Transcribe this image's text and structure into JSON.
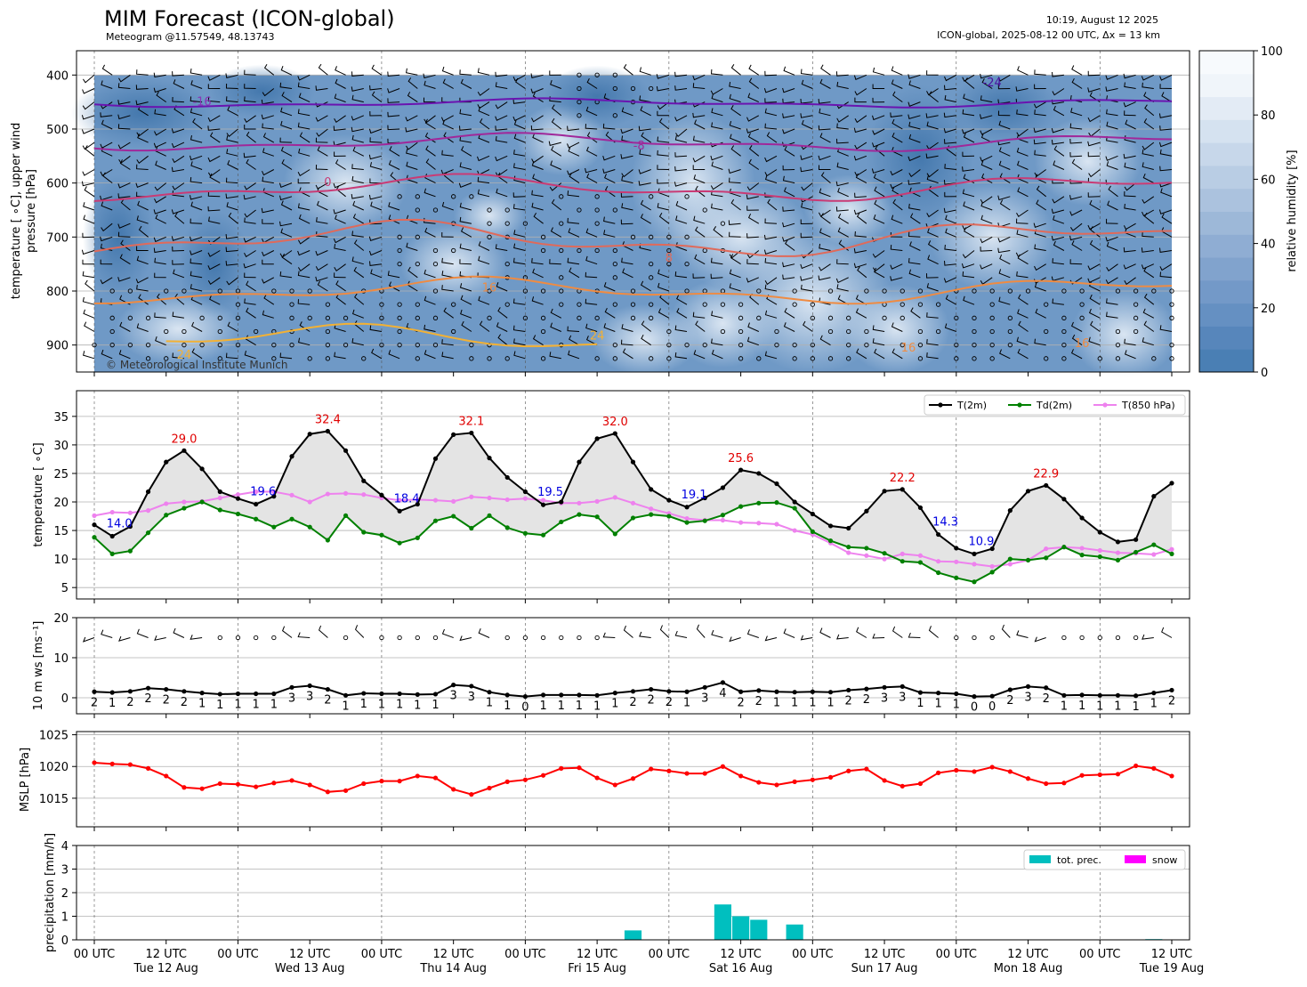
{
  "header": {
    "title": "MIM Forecast (ICON-global)",
    "subtitle": "Meteogram @11.57549, 48.13743",
    "timestamp": "10:19, August 12 2025",
    "run": "ICON-global, 2025-08-12 00 UTC, Δx = 13 km",
    "copyright": "© Meteorological Institute Munich"
  },
  "time_axis": {
    "hours": [
      0,
      3,
      6,
      9,
      12,
      15,
      18,
      21,
      24,
      27,
      30,
      33,
      36,
      39,
      42,
      45,
      48,
      51,
      54,
      57,
      60,
      63,
      66,
      69,
      72,
      75,
      78,
      81,
      84,
      87,
      90,
      93,
      96,
      99,
      102,
      105,
      108,
      111,
      114,
      117,
      120,
      123,
      126,
      129,
      132,
      135,
      138,
      141,
      144,
      147,
      150,
      153,
      156,
      159,
      162,
      165,
      168,
      171,
      174,
      177,
      180
    ],
    "tick_labels": [
      {
        "hour": 0,
        "line1": "00 UTC",
        "line2": ""
      },
      {
        "hour": 12,
        "line1": "12 UTC",
        "line2": "Tue 12 Aug"
      },
      {
        "hour": 24,
        "line1": "00 UTC",
        "line2": ""
      },
      {
        "hour": 36,
        "line1": "12 UTC",
        "line2": "Wed 13 Aug"
      },
      {
        "hour": 48,
        "line1": "00 UTC",
        "line2": ""
      },
      {
        "hour": 60,
        "line1": "12 UTC",
        "line2": "Thu 14 Aug"
      },
      {
        "hour": 72,
        "line1": "00 UTC",
        "line2": ""
      },
      {
        "hour": 84,
        "line1": "12 UTC",
        "line2": "Fri 15 Aug"
      },
      {
        "hour": 96,
        "line1": "00 UTC",
        "line2": ""
      },
      {
        "hour": 108,
        "line1": "12 UTC",
        "line2": "Sat 16 Aug"
      },
      {
        "hour": 120,
        "line1": "00 UTC",
        "line2": ""
      },
      {
        "hour": 132,
        "line1": "12 UTC",
        "line2": "Sun 17 Aug"
      },
      {
        "hour": 144,
        "line1": "00 UTC",
        "line2": ""
      },
      {
        "hour": 156,
        "line1": "12 UTC",
        "line2": "Mon 18 Aug"
      },
      {
        "hour": 168,
        "line1": "00 UTC",
        "line2": ""
      },
      {
        "hour": 180,
        "line1": "12 UTC",
        "line2": "Tue 19 Aug"
      }
    ]
  },
  "chart_data": [
    {
      "type": "heatmap",
      "name": "upper-air",
      "ylabel": "temperature [$^\\circ$C], upper wind\npressure [hPa]",
      "ylabel_lines": [
        "temperature [ ∘C], upper wind",
        "pressure [hPa]"
      ],
      "yticks": [
        400,
        500,
        600,
        700,
        800,
        900
      ],
      "ylim": [
        950,
        355
      ],
      "colorbar": {
        "label": "relative humidity [%]",
        "ticks": [
          0,
          20,
          40,
          60,
          80,
          100
        ],
        "range": [
          0,
          100
        ]
      },
      "isotherm_labels": [
        {
          "hour": 18,
          "p": 448,
          "text": "-16",
          "color": "#8a35b7"
        },
        {
          "hour": 150,
          "p": 413,
          "text": "-24",
          "color": "#4a0fa0"
        },
        {
          "hour": 91,
          "p": 530,
          "text": "-8",
          "color": "#a0289a"
        },
        {
          "hour": 39,
          "p": 597,
          "text": "0",
          "color": "#c93b75"
        },
        {
          "hour": 96,
          "p": 737,
          "text": "8",
          "color": "#e06a5a"
        },
        {
          "hour": 66,
          "p": 793,
          "text": "16",
          "color": "#ef8b42"
        },
        {
          "hour": 84,
          "p": 882,
          "text": "24",
          "color": "#f2b135"
        },
        {
          "hour": 15,
          "p": 917,
          "text": "24",
          "color": "#f2b135"
        },
        {
          "hour": 136,
          "p": 904,
          "text": "16",
          "color": "#ef8b42"
        },
        {
          "hour": 165,
          "p": 896,
          "text": "16",
          "color": "#ef8b42"
        }
      ]
    },
    {
      "type": "line",
      "name": "temperature",
      "ylabel": "temperature [ ∘C]",
      "ylim": [
        3,
        39.5
      ],
      "yticks": [
        5,
        10,
        15,
        20,
        25,
        30,
        35
      ],
      "legend_position": "top-right",
      "series": [
        {
          "name": "T(2m)",
          "color": "#000000",
          "values": [
            16.0,
            14.0,
            15.7,
            21.8,
            27.0,
            29.0,
            25.8,
            21.8,
            20.6,
            19.6,
            21.0,
            28.0,
            31.9,
            32.4,
            29.0,
            23.7,
            21.2,
            18.4,
            19.6,
            27.6,
            31.8,
            32.1,
            27.7,
            24.3,
            21.8,
            19.5,
            20.0,
            27.0,
            31.1,
            32.0,
            27.0,
            22.2,
            20.3,
            19.1,
            20.7,
            22.5,
            25.6,
            25.0,
            23.2,
            20.0,
            17.9,
            15.8,
            15.4,
            18.4,
            21.9,
            22.2,
            19.0,
            14.3,
            11.9,
            10.9,
            11.8,
            18.5,
            21.9,
            22.9,
            20.5,
            17.2,
            14.7,
            13.0,
            13.4,
            21.0,
            23.3
          ]
        },
        {
          "name": "Td(2m)",
          "color": "#008000",
          "values": [
            13.8,
            10.9,
            11.4,
            14.6,
            17.7,
            18.9,
            20.0,
            18.6,
            17.9,
            17.0,
            15.6,
            17.0,
            15.6,
            13.3,
            17.6,
            14.7,
            14.2,
            12.8,
            13.7,
            16.7,
            17.5,
            15.4,
            17.6,
            15.5,
            14.5,
            14.2,
            16.5,
            17.8,
            17.4,
            14.4,
            17.2,
            17.8,
            17.5,
            16.4,
            16.7,
            17.7,
            19.2,
            19.8,
            19.9,
            18.9,
            14.8,
            13.2,
            12.1,
            11.9,
            11.0,
            9.6,
            9.4,
            7.6,
            6.7,
            6.0,
            7.7,
            10.0,
            9.8,
            10.2,
            12.1,
            10.7,
            10.4,
            9.8,
            11.2,
            12.5,
            10.9
          ]
        },
        {
          "name": "T(850 hPa)",
          "color": "#ee82ee",
          "values": [
            17.6,
            18.2,
            18.1,
            18.5,
            19.7,
            20.0,
            20.1,
            20.7,
            21.3,
            21.8,
            21.8,
            21.2,
            20.0,
            21.4,
            21.5,
            21.3,
            20.7,
            20.3,
            20.4,
            20.3,
            20.1,
            20.9,
            20.7,
            20.4,
            20.6,
            20.3,
            19.8,
            19.8,
            20.1,
            20.8,
            19.8,
            18.8,
            18.0,
            17.1,
            16.8,
            16.8,
            16.4,
            16.3,
            16.1,
            15.0,
            14.3,
            12.8,
            11.1,
            10.6,
            10.0,
            10.9,
            10.6,
            9.6,
            9.5,
            9.1,
            8.7,
            9.1,
            9.8,
            11.8,
            12.1,
            11.9,
            11.5,
            11.1,
            11.0,
            10.8,
            11.7
          ]
        }
      ],
      "annotations": [
        {
          "hour": 3,
          "value": 14.0,
          "text": "14.0",
          "color": "blue"
        },
        {
          "hour": 15,
          "value": 29.0,
          "text": "29.0",
          "color": "red"
        },
        {
          "hour": 27,
          "value": 19.6,
          "text": "19.6",
          "color": "blue"
        },
        {
          "hour": 39,
          "value": 32.4,
          "text": "32.4",
          "color": "red"
        },
        {
          "hour": 51,
          "value": 18.4,
          "text": "18.4",
          "color": "blue"
        },
        {
          "hour": 63,
          "value": 32.1,
          "text": "32.1",
          "color": "red"
        },
        {
          "hour": 75,
          "value": 19.5,
          "text": "19.5",
          "color": "blue"
        },
        {
          "hour": 87,
          "value": 32.0,
          "text": "32.0",
          "color": "red"
        },
        {
          "hour": 99,
          "value": 19.1,
          "text": "19.1",
          "color": "blue"
        },
        {
          "hour": 108,
          "value": 25.6,
          "text": "25.6",
          "color": "red"
        },
        {
          "hour": 135,
          "value": 22.2,
          "text": "22.2",
          "color": "red"
        },
        {
          "hour": 141,
          "value": 14.3,
          "text": "14.3",
          "color": "blue"
        },
        {
          "hour": 147,
          "value": 10.9,
          "text": "10.9",
          "color": "blue"
        },
        {
          "hour": 159,
          "value": 22.9,
          "text": "22.9",
          "color": "red"
        }
      ]
    },
    {
      "type": "line",
      "name": "wind",
      "ylabel": "10 m ws [ms⁻¹]",
      "ylim": [
        -4,
        20
      ],
      "yticks": [
        0,
        10,
        20
      ],
      "series": [
        {
          "name": "10 m ws",
          "color": "#000000",
          "values": [
            1.5,
            1.3,
            1.6,
            2.4,
            2.1,
            1.6,
            1.2,
            0.9,
            1.0,
            1.0,
            1.0,
            2.6,
            3.0,
            2.1,
            0.6,
            1.1,
            1.0,
            1.0,
            0.8,
            0.9,
            3.2,
            2.9,
            1.4,
            0.7,
            0.3,
            0.7,
            0.7,
            0.7,
            0.6,
            1.2,
            1.6,
            2.1,
            1.6,
            1.5,
            2.6,
            3.8,
            1.5,
            1.8,
            1.5,
            1.4,
            1.5,
            1.4,
            1.9,
            2.2,
            2.6,
            2.8,
            1.3,
            1.2,
            1.0,
            0.3,
            0.4,
            2.0,
            2.8,
            2.5,
            0.6,
            0.7,
            0.6,
            0.6,
            0.5,
            1.2,
            1.9
          ]
        },
        {
          "name": "Beaufort",
          "color": "#000000",
          "labels": [
            "2",
            "1",
            "2",
            "2",
            "2",
            "2",
            "1",
            "1",
            "1",
            "1",
            "1",
            "3",
            "3",
            "2",
            "1",
            "1",
            "1",
            "1",
            "1",
            "1",
            "3",
            "3",
            "1",
            "1",
            "0",
            "1",
            "1",
            "1",
            "1",
            "1",
            "2",
            "2",
            "2",
            "1",
            "3",
            "4",
            "2",
            "2",
            "1",
            "1",
            "1",
            "1",
            "2",
            "2",
            "3",
            "3",
            "1",
            "1",
            "1",
            "0",
            "0",
            "2",
            "3",
            "2",
            "1",
            "1",
            "1",
            "1",
            "1",
            "1",
            "2"
          ]
        }
      ]
    },
    {
      "type": "line",
      "name": "mslp",
      "ylabel": "MSLP [hPa]",
      "ylim": [
        1010.5,
        1025.5
      ],
      "yticks": [
        1015,
        1020,
        1025
      ],
      "series": [
        {
          "name": "MSLP",
          "color": "#ff0000",
          "values": [
            1020.6,
            1020.4,
            1020.3,
            1019.7,
            1018.5,
            1016.7,
            1016.5,
            1017.3,
            1017.2,
            1016.8,
            1017.4,
            1017.8,
            1017.1,
            1016.0,
            1016.2,
            1017.3,
            1017.7,
            1017.7,
            1018.5,
            1018.2,
            1016.4,
            1015.6,
            1016.6,
            1017.6,
            1017.9,
            1018.6,
            1019.7,
            1019.8,
            1018.2,
            1017.1,
            1018.1,
            1019.6,
            1019.3,
            1018.9,
            1018.9,
            1020.0,
            1018.5,
            1017.5,
            1017.1,
            1017.6,
            1017.9,
            1018.3,
            1019.3,
            1019.6,
            1017.8,
            1016.9,
            1017.3,
            1019.0,
            1019.4,
            1019.2,
            1019.9,
            1019.2,
            1018.1,
            1017.3,
            1017.4,
            1018.6,
            1018.7,
            1018.8,
            1020.1,
            1019.7,
            1018.5
          ]
        }
      ]
    },
    {
      "type": "bar",
      "name": "precipitation",
      "ylabel": "precipitation [mm/h]",
      "ylim": [
        0,
        4
      ],
      "yticks": [
        0,
        1,
        2,
        3,
        4
      ],
      "legend_position": "top-right",
      "series": [
        {
          "name": "tot. prec.",
          "color": "#00bfbf",
          "bars": [
            {
              "hour": 90,
              "value": 0.4
            },
            {
              "hour": 105,
              "value": 1.5
            },
            {
              "hour": 108,
              "value": 1.0
            },
            {
              "hour": 111,
              "value": 0.85
            },
            {
              "hour": 117,
              "value": 0.65
            },
            {
              "hour": 177,
              "value": 0.03
            }
          ]
        },
        {
          "name": "snow",
          "color": "#ff00ff",
          "bars": []
        }
      ]
    }
  ]
}
